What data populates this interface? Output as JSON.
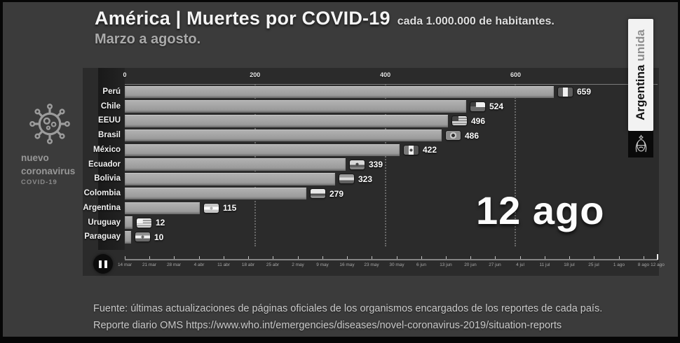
{
  "header": {
    "title": "América | Muertes por COVID-19",
    "title_suffix": "cada 1.000.000 de habitantes.",
    "subtitle": "Marzo a agosto."
  },
  "logo": {
    "line1": "nuevo",
    "line2": "coronavirus",
    "line3": "COVID-19"
  },
  "banner": {
    "bold": "Argentina",
    "light": "unida"
  },
  "current_date": "12 ago",
  "chart_data": {
    "type": "bar",
    "orientation": "horizontal",
    "title": "América | Muertes por COVID-19 cada 1.000.000 de habitantes.",
    "subtitle": "Marzo a agosto.",
    "categories": [
      "Perú",
      "Chile",
      "EEUU",
      "Brasil",
      "México",
      "Ecuador",
      "Bolivia",
      "Colombia",
      "Argentina",
      "Uruguay",
      "Paraguay"
    ],
    "values": [
      659,
      524,
      496,
      486,
      422,
      339,
      323,
      279,
      115,
      12,
      10
    ],
    "flags": [
      "peru",
      "chile",
      "eeuu",
      "brasil",
      "mexico",
      "ecuador",
      "bolivia",
      "colombia",
      "argentina",
      "uruguay",
      "paraguay"
    ],
    "xlabel": "",
    "ylabel": "",
    "xlim": [
      0,
      818
    ],
    "x_ticks": [
      0,
      200,
      400,
      600
    ],
    "grid": "dotted-vertical",
    "legend": "none",
    "frame_label": "12 ago"
  },
  "timeline": {
    "state": "pause",
    "dates": [
      "14 mar",
      "21 mar",
      "28 mar",
      "4 abr",
      "11 abr",
      "18 abr",
      "25 abr",
      "2 may",
      "9 may",
      "16 may",
      "23 may",
      "30 may",
      "6 jun",
      "13 jun",
      "20 jun",
      "27 jun",
      "4 jul",
      "11 jul",
      "18 jul",
      "25 jul",
      "1 ago",
      "8 ago",
      "12 ago"
    ],
    "day_offsets": [
      0,
      7,
      14,
      21,
      28,
      35,
      42,
      49,
      56,
      63,
      70,
      77,
      84,
      91,
      98,
      105,
      112,
      119,
      126,
      133,
      140,
      147,
      151
    ]
  },
  "footer": {
    "line1": "Fuente: últimas actualizaciones de páginas oficiales de los organismos encargados de los reportes de cada país.",
    "line2": "Reporte diario OMS https://www.who.int/emergencies/diseases/novel-coronavirus-2019/situation-reports"
  },
  "colors": {
    "background": "#3b3b3b",
    "panel": "#2b2b2b",
    "bar": "#a4a4a4",
    "text": "#f5f5f5",
    "muted_text": "#aaaaaa",
    "banner_bg": "#f2f2f2"
  }
}
